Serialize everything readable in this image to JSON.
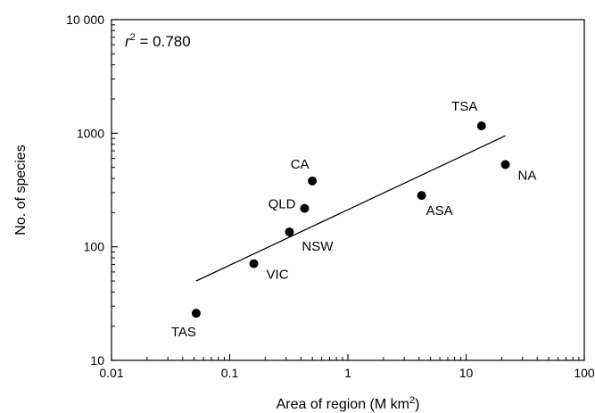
{
  "chart_data": {
    "type": "scatter",
    "title": "",
    "xlabel": "Area of region (M km",
    "xlabel_sup": "2",
    "xlabel_end": ")",
    "ylabel": "No. of species",
    "x_scale": "log",
    "y_scale": "log",
    "xlim": [
      0.01,
      100
    ],
    "ylim": [
      10,
      10000
    ],
    "x_ticks": [
      0.01,
      0.1,
      1,
      10,
      100
    ],
    "x_tick_labels": [
      "0.01",
      "0.1",
      "1",
      "10",
      "100"
    ],
    "y_ticks": [
      10,
      100,
      1000,
      10000
    ],
    "y_tick_labels": [
      "10",
      "100",
      "1000",
      "10 000"
    ],
    "grid": false,
    "annotation": {
      "prefix": "r",
      "sup": "2",
      "text": " = 0.780"
    },
    "points": [
      {
        "label": "TAS",
        "x": 0.052,
        "y": 26
      },
      {
        "label": "VIC",
        "x": 0.16,
        "y": 71
      },
      {
        "label": "NSW",
        "x": 0.32,
        "y": 135
      },
      {
        "label": "QLD",
        "x": 0.43,
        "y": 218
      },
      {
        "label": "CA",
        "x": 0.5,
        "y": 380
      },
      {
        "label": "ASA",
        "x": 4.2,
        "y": 283
      },
      {
        "label": "TSA",
        "x": 13.5,
        "y": 1160
      },
      {
        "label": "NA",
        "x": 21.5,
        "y": 530
      }
    ],
    "fit_line": {
      "x": [
        0.052,
        21.5
      ],
      "y": [
        50,
        950
      ]
    }
  }
}
